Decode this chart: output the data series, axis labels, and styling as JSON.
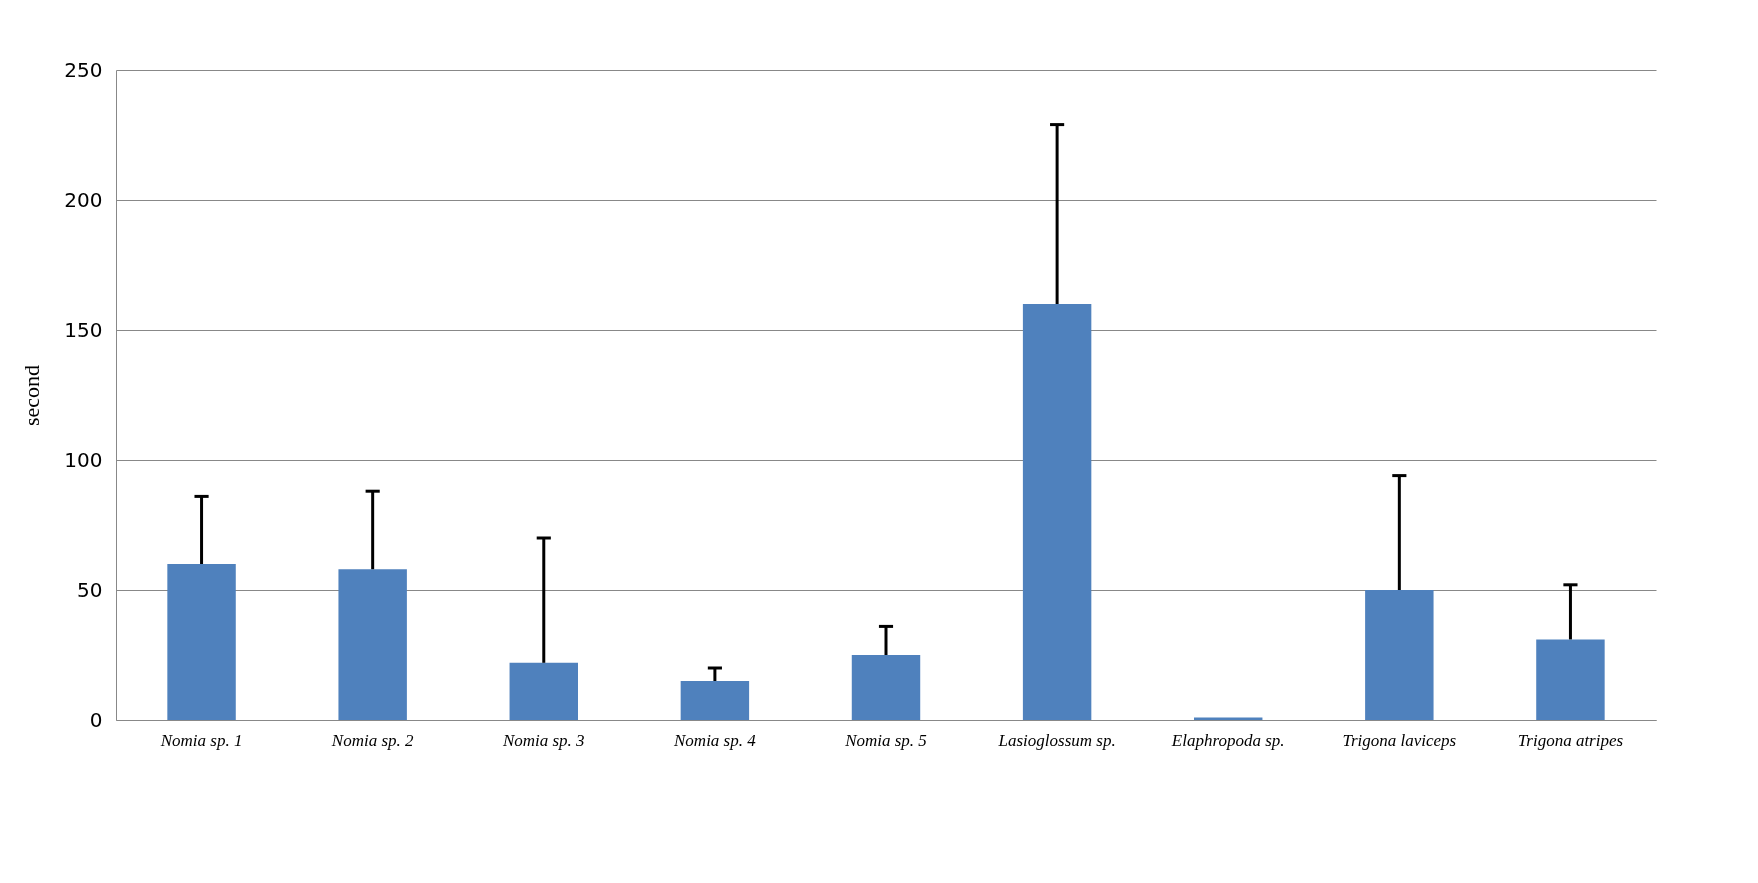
{
  "chart_data": {
    "type": "bar",
    "ylabel": "second",
    "categories": [
      "Nomia sp. 1",
      "Nomia sp. 2",
      "Nomia sp. 3",
      "Nomia sp. 4",
      "Nomia sp. 5",
      "Lasioglossum sp.",
      "Elaphropoda sp.",
      "Trigona laviceps",
      "Trigona atripes"
    ],
    "values": [
      60,
      58,
      22,
      15,
      25,
      160,
      1,
      50,
      31
    ],
    "errors": [
      [
        60,
        86
      ],
      [
        58,
        88
      ],
      [
        22,
        70
      ],
      [
        15,
        20
      ],
      [
        25,
        36
      ],
      [
        160,
        229
      ],
      null,
      [
        50,
        94
      ],
      [
        31,
        52
      ]
    ],
    "color": "#4f81bd",
    "ylim": [
      0,
      250
    ],
    "yticks": [
      0,
      50,
      100,
      150,
      200,
      250
    ],
    "grid": "y"
  }
}
